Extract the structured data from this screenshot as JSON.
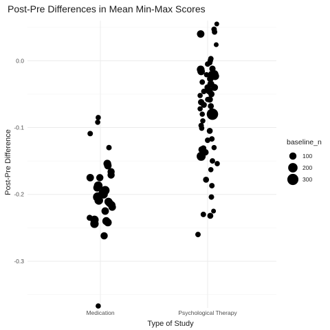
{
  "chart_data": {
    "type": "scatter",
    "title": "Post-Pre Differences in Mean Min-Max Scores",
    "xlabel": "Type of Study",
    "ylabel": "Post-Pre Difference",
    "categories": [
      "Medication",
      "Psychological Therapy"
    ],
    "ylim": [
      -0.37,
      0.06
    ],
    "y_ticks": [
      0.0,
      -0.1,
      -0.2,
      -0.3
    ],
    "y_tick_labels": [
      "0.0",
      "-0.1",
      "-0.2",
      "-0.3"
    ],
    "grid": true,
    "legend": {
      "title": "baseline_n",
      "position": "right",
      "entries": [
        {
          "label": "100",
          "value": 100
        },
        {
          "label": "200",
          "value": 200
        },
        {
          "label": "300",
          "value": 300
        }
      ]
    },
    "series": [
      {
        "category": "Medication",
        "points": [
          {
            "jitter": -0.04,
            "y": -0.085,
            "size": 40
          },
          {
            "jitter": -0.05,
            "y": -0.092,
            "size": 40
          },
          {
            "jitter": -0.19,
            "y": -0.109,
            "size": 45
          },
          {
            "jitter": 0.16,
            "y": -0.13,
            "size": 45
          },
          {
            "jitter": 0.13,
            "y": -0.154,
            "size": 120
          },
          {
            "jitter": 0.14,
            "y": -0.157,
            "size": 110
          },
          {
            "jitter": 0.2,
            "y": -0.166,
            "size": 100
          },
          {
            "jitter": 0.2,
            "y": -0.171,
            "size": 100
          },
          {
            "jitter": -0.19,
            "y": -0.175,
            "size": 110
          },
          {
            "jitter": -0.01,
            "y": -0.175,
            "size": 100
          },
          {
            "jitter": -0.04,
            "y": -0.187,
            "size": 160
          },
          {
            "jitter": -0.06,
            "y": -0.19,
            "size": 120
          },
          {
            "jitter": 0.09,
            "y": -0.194,
            "size": 170
          },
          {
            "jitter": 0.05,
            "y": -0.198,
            "size": 170
          },
          {
            "jitter": 0.06,
            "y": -0.2,
            "size": 150
          },
          {
            "jitter": -0.05,
            "y": -0.204,
            "size": 200
          },
          {
            "jitter": -0.03,
            "y": -0.209,
            "size": 160
          },
          {
            "jitter": 0.15,
            "y": -0.211,
            "size": 130
          },
          {
            "jitter": 0.17,
            "y": -0.213,
            "size": 120
          },
          {
            "jitter": 0.21,
            "y": -0.216,
            "size": 120
          },
          {
            "jitter": 0.22,
            "y": -0.219,
            "size": 110
          },
          {
            "jitter": 0.09,
            "y": -0.225,
            "size": 110
          },
          {
            "jitter": -0.2,
            "y": -0.235,
            "size": 60
          },
          {
            "jitter": 0.11,
            "y": -0.24,
            "size": 130
          },
          {
            "jitter": 0.14,
            "y": -0.242,
            "size": 120
          },
          {
            "jitter": -0.11,
            "y": -0.238,
            "size": 150
          },
          {
            "jitter": -0.11,
            "y": -0.244,
            "size": 150
          },
          {
            "jitter": 0.07,
            "y": -0.262,
            "size": 100
          },
          {
            "jitter": -0.04,
            "y": -0.367,
            "size": 40
          }
        ]
      },
      {
        "category": "Psychological Therapy",
        "points": [
          {
            "jitter": 0.17,
            "y": 0.055,
            "size": 30
          },
          {
            "jitter": 0.12,
            "y": 0.047,
            "size": 45
          },
          {
            "jitter": 0.13,
            "y": 0.043,
            "size": 45
          },
          {
            "jitter": -0.13,
            "y": 0.04,
            "size": 110
          },
          {
            "jitter": 0.16,
            "y": 0.024,
            "size": 30
          },
          {
            "jitter": 0.06,
            "y": 0.003,
            "size": 45
          },
          {
            "jitter": 0.05,
            "y": 0.0,
            "size": 45
          },
          {
            "jitter": 0.04,
            "y": -0.003,
            "size": 45
          },
          {
            "jitter": 0.0,
            "y": -0.005,
            "size": 45
          },
          {
            "jitter": -0.13,
            "y": -0.013,
            "size": 120
          },
          {
            "jitter": -0.12,
            "y": -0.016,
            "size": 110
          },
          {
            "jitter": 0.09,
            "y": -0.012,
            "size": 70
          },
          {
            "jitter": 0.13,
            "y": -0.02,
            "size": 120
          },
          {
            "jitter": 0.14,
            "y": -0.023,
            "size": 130
          },
          {
            "jitter": 0.07,
            "y": -0.02,
            "size": 70
          },
          {
            "jitter": 0.05,
            "y": -0.027,
            "size": 80
          },
          {
            "jitter": -0.02,
            "y": -0.021,
            "size": 40
          },
          {
            "jitter": -0.1,
            "y": -0.032,
            "size": 45
          },
          {
            "jitter": 0.06,
            "y": -0.035,
            "size": 90
          },
          {
            "jitter": 0.13,
            "y": -0.04,
            "size": 90
          },
          {
            "jitter": 0.0,
            "y": -0.04,
            "size": 70
          },
          {
            "jitter": 0.03,
            "y": -0.045,
            "size": 100
          },
          {
            "jitter": -0.07,
            "y": -0.046,
            "size": 45
          },
          {
            "jitter": 0.07,
            "y": -0.05,
            "size": 70
          },
          {
            "jitter": 0.04,
            "y": -0.058,
            "size": 70
          },
          {
            "jitter": -0.14,
            "y": -0.052,
            "size": 40
          },
          {
            "jitter": 0.0,
            "y": -0.058,
            "size": 40
          },
          {
            "jitter": -0.12,
            "y": -0.062,
            "size": 70
          },
          {
            "jitter": -0.07,
            "y": -0.066,
            "size": 60
          },
          {
            "jitter": 0.06,
            "y": -0.068,
            "size": 60
          },
          {
            "jitter": 0.08,
            "y": -0.078,
            "size": 120
          },
          {
            "jitter": 0.09,
            "y": -0.08,
            "size": 320
          },
          {
            "jitter": -0.1,
            "y": -0.08,
            "size": 40
          },
          {
            "jitter": -0.14,
            "y": -0.072,
            "size": 40
          },
          {
            "jitter": -0.12,
            "y": -0.097,
            "size": 45
          },
          {
            "jitter": -0.09,
            "y": -0.09,
            "size": 40
          },
          {
            "jitter": -0.11,
            "y": -0.101,
            "size": 40
          },
          {
            "jitter": 0.04,
            "y": -0.105,
            "size": 60
          },
          {
            "jitter": 0.08,
            "y": -0.117,
            "size": 45
          },
          {
            "jitter": 0.0,
            "y": -0.119,
            "size": 45
          },
          {
            "jitter": 0.12,
            "y": -0.13,
            "size": 40
          },
          {
            "jitter": -0.08,
            "y": -0.131,
            "size": 60
          },
          {
            "jitter": -0.08,
            "y": -0.135,
            "size": 60
          },
          {
            "jitter": -0.11,
            "y": -0.133,
            "size": 80
          },
          {
            "jitter": -0.04,
            "y": -0.137,
            "size": 70
          },
          {
            "jitter": -0.12,
            "y": -0.143,
            "size": 180
          },
          {
            "jitter": 0.09,
            "y": -0.15,
            "size": 45
          },
          {
            "jitter": 0.18,
            "y": -0.154,
            "size": 40
          },
          {
            "jitter": 0.06,
            "y": -0.163,
            "size": 40
          },
          {
            "jitter": -0.03,
            "y": -0.178,
            "size": 60
          },
          {
            "jitter": 0.08,
            "y": -0.187,
            "size": 45
          },
          {
            "jitter": 0.07,
            "y": -0.204,
            "size": 45
          },
          {
            "jitter": 0.11,
            "y": -0.225,
            "size": 30
          },
          {
            "jitter": -0.08,
            "y": -0.23,
            "size": 45
          },
          {
            "jitter": 0.05,
            "y": -0.232,
            "size": 60
          },
          {
            "jitter": -0.18,
            "y": -0.26,
            "size": 45
          }
        ]
      }
    ]
  }
}
